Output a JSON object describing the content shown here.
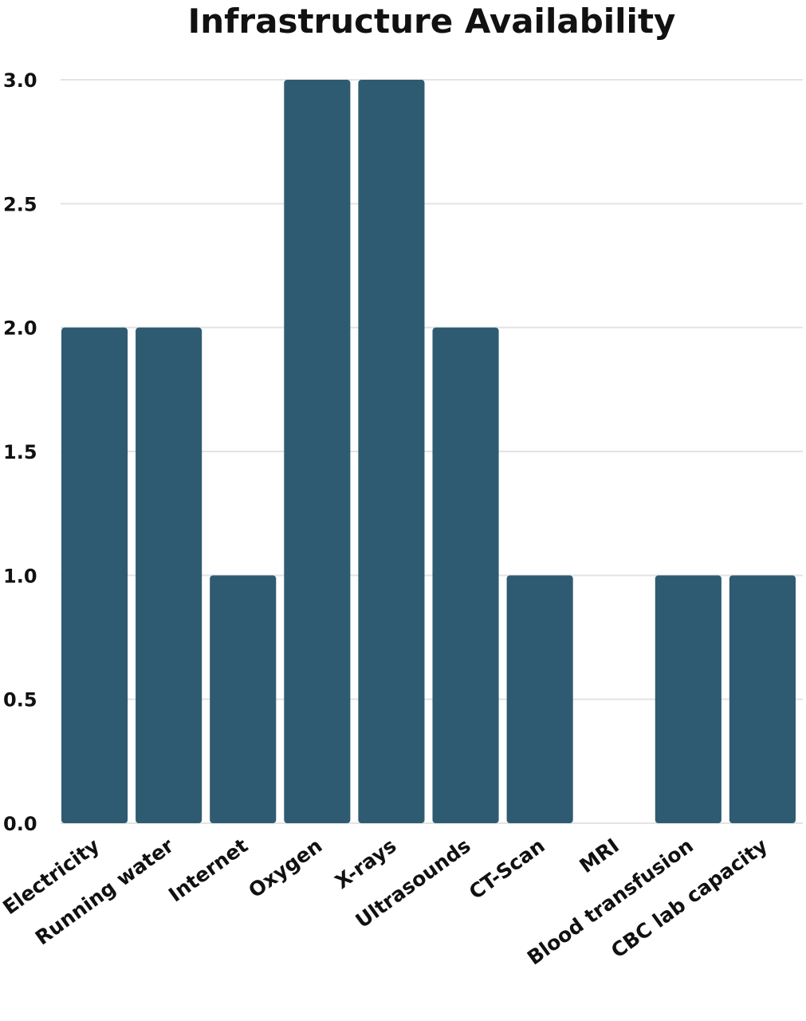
{
  "chart_data": {
    "type": "bar",
    "title": "Infrastructure Availability",
    "categories": [
      "Electricity",
      "Running water",
      "Internet",
      "Oxygen",
      "X-rays",
      "Ultrasounds",
      "CT-Scan",
      "MRI",
      "Blood transfusion",
      "CBC lab capacity"
    ],
    "values": [
      2,
      2,
      1,
      3,
      3,
      2,
      1,
      0,
      1,
      1
    ],
    "yticks": [
      "0.0",
      "0.5",
      "1.0",
      "1.5",
      "2.0",
      "2.5",
      "3.0"
    ],
    "ylim": [
      0,
      3
    ],
    "grid": true,
    "legend": "none",
    "bar_color": "#2e5b72",
    "grid_color": "#e3e3e3"
  }
}
